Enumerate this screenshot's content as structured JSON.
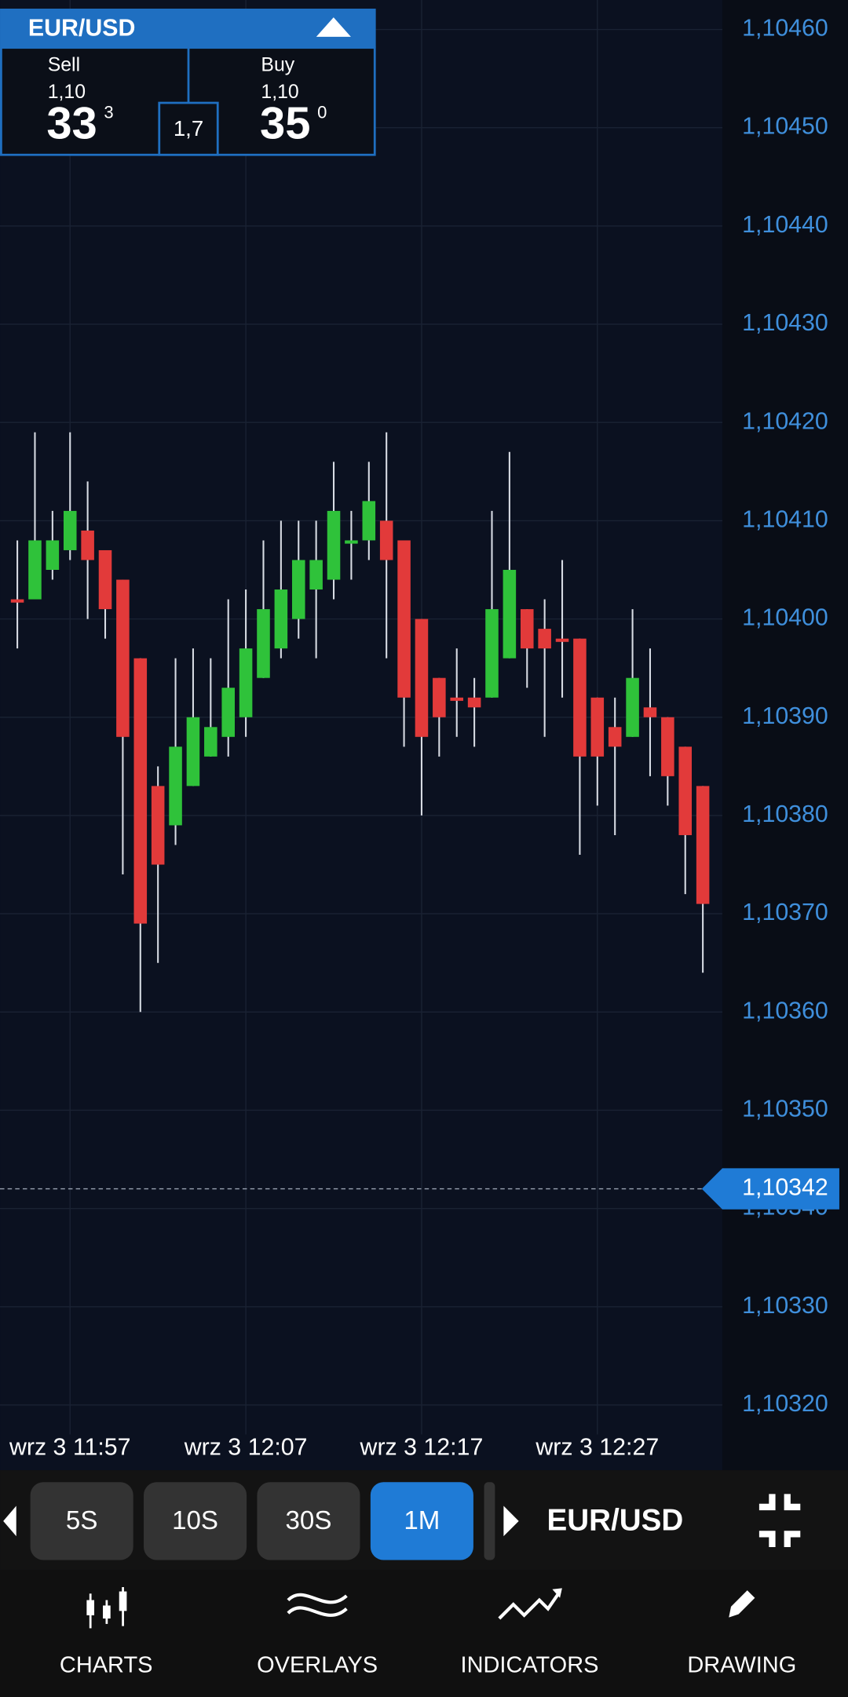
{
  "quote": {
    "symbol": "EUR/USD",
    "sell_label": "Sell",
    "sell_prefix": "1,10",
    "sell_big": "33",
    "sell_sup": "3",
    "spread": "1,7",
    "buy_label": "Buy",
    "buy_prefix": "1,10",
    "buy_big": "35",
    "buy_sup": "0"
  },
  "chart_data": {
    "type": "candlestick",
    "categories": [
      null,
      null,
      null,
      "wrz 3 11:57",
      null,
      null,
      null,
      null,
      null,
      null,
      null,
      null,
      null,
      "wrz 3 12:07",
      null,
      null,
      null,
      null,
      null,
      null,
      null,
      null,
      null,
      "wrz 3 12:17",
      null,
      null,
      null,
      null,
      null,
      null,
      null,
      null,
      null,
      "wrz 3 12:27",
      null,
      null,
      null,
      null,
      null,
      null
    ],
    "open": [
      1.10402,
      1.10402,
      1.10405,
      1.10407,
      1.10409,
      1.10407,
      1.10404,
      1.10396,
      1.10383,
      1.10379,
      1.10383,
      1.10386,
      1.10388,
      1.1039,
      1.10394,
      1.10397,
      1.104,
      1.10403,
      1.10404,
      1.10408,
      1.10408,
      1.1041,
      1.10408,
      1.104,
      1.10394,
      1.10392,
      1.10392,
      1.10392,
      1.10396,
      1.10401,
      1.10399,
      1.10398,
      1.10398,
      1.10392,
      1.10389,
      1.10388,
      1.10391,
      1.1039,
      1.10387,
      1.10383
    ],
    "high": [
      1.10408,
      1.10419,
      1.10411,
      1.10419,
      1.10414,
      1.10407,
      1.10404,
      1.10396,
      1.10385,
      1.10396,
      1.10397,
      1.10396,
      1.10402,
      1.10403,
      1.10408,
      1.1041,
      1.1041,
      1.1041,
      1.10416,
      1.10411,
      1.10416,
      1.10419,
      1.10408,
      1.104,
      1.10394,
      1.10397,
      1.10394,
      1.10411,
      1.10417,
      1.10401,
      1.10402,
      1.10406,
      1.10398,
      1.10392,
      1.10392,
      1.10401,
      1.10397,
      1.1039,
      1.10387,
      1.10383
    ],
    "low": [
      1.10397,
      1.10402,
      1.10404,
      1.10406,
      1.104,
      1.10398,
      1.10374,
      1.1036,
      1.10365,
      1.10377,
      1.10383,
      1.10386,
      1.10386,
      1.10388,
      1.10394,
      1.10396,
      1.10398,
      1.10396,
      1.10402,
      1.10404,
      1.10406,
      1.10396,
      1.10387,
      1.1038,
      1.10386,
      1.10388,
      1.10387,
      1.10392,
      1.10396,
      1.10393,
      1.10388,
      1.10392,
      1.10376,
      1.10381,
      1.10378,
      1.10388,
      1.10384,
      1.10381,
      1.10372,
      1.10364
    ],
    "close": [
      1.10402,
      1.10408,
      1.10408,
      1.10411,
      1.10406,
      1.10401,
      1.10388,
      1.10369,
      1.10375,
      1.10387,
      1.1039,
      1.10389,
      1.10393,
      1.10397,
      1.10401,
      1.10403,
      1.10406,
      1.10406,
      1.10411,
      1.10408,
      1.10412,
      1.10406,
      1.10392,
      1.10388,
      1.1039,
      1.10392,
      1.10391,
      1.10401,
      1.10405,
      1.10397,
      1.10397,
      1.10398,
      1.10386,
      1.10386,
      1.10387,
      1.10394,
      1.1039,
      1.10384,
      1.10378,
      1.10371
    ],
    "direction": [
      "down",
      "up",
      "up",
      "up",
      "down",
      "down",
      "down",
      "down",
      "down",
      "up",
      "up",
      "up",
      "up",
      "up",
      "up",
      "up",
      "up",
      "up",
      "up",
      "up",
      "up",
      "down",
      "down",
      "down",
      "down",
      "down",
      "down",
      "up",
      "up",
      "down",
      "down",
      "down",
      "down",
      "down",
      "down",
      "up",
      "down",
      "down",
      "down",
      "down"
    ],
    "up_color": "#2fc23a",
    "down_color": "#e23a3a",
    "ylim": [
      1.10317,
      1.10463
    ],
    "yticks": [
      {
        "value": 1.1032,
        "label": "1,10320"
      },
      {
        "value": 1.1033,
        "label": "1,10330"
      },
      {
        "value": 1.1034,
        "label": "1,10340"
      },
      {
        "value": 1.1035,
        "label": "1,10350"
      },
      {
        "value": 1.1036,
        "label": "1,10360"
      },
      {
        "value": 1.1037,
        "label": "1,10370"
      },
      {
        "value": 1.1038,
        "label": "1,10380"
      },
      {
        "value": 1.1039,
        "label": "1,10390"
      },
      {
        "value": 1.104,
        "label": "1,10400"
      },
      {
        "value": 1.1041,
        "label": "1,10410"
      },
      {
        "value": 1.1042,
        "label": "1,10420"
      },
      {
        "value": 1.1043,
        "label": "1,10430"
      },
      {
        "value": 1.1044,
        "label": "1,10440"
      },
      {
        "value": 1.1045,
        "label": "1,10450"
      },
      {
        "value": 1.1046,
        "label": "1,10460"
      }
    ],
    "current_price": {
      "value": 1.10342,
      "label": "1,10342"
    },
    "grid": true
  },
  "timeframes": [
    "5S",
    "10S",
    "30S",
    "1M"
  ],
  "selected_timeframe": "1M",
  "symbol_bar": "EUR/USD",
  "nav": [
    "CHARTS",
    "OVERLAYS",
    "INDICATORS",
    "DRAWING"
  ]
}
